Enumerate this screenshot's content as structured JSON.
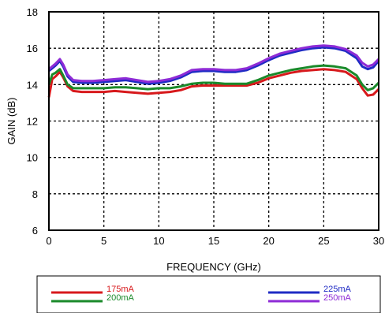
{
  "chart_data": {
    "type": "line",
    "xlabel": "FREQUENCY (GHz)",
    "ylabel": "GAIN (dB)",
    "xlim": [
      0,
      30
    ],
    "ylim": [
      6,
      18
    ],
    "xticks": [
      0,
      5,
      10,
      15,
      20,
      25,
      30
    ],
    "yticks": [
      6,
      8,
      10,
      12,
      14,
      16,
      18
    ],
    "grid": true,
    "legend_placement": "bottom",
    "series": [
      {
        "name": "175mA",
        "color": "#d7191c",
        "x": [
          0,
          0.3,
          0.6,
          1.0,
          1.3,
          1.7,
          2.2,
          3,
          4,
          5,
          6,
          7,
          8,
          9,
          10,
          11,
          12,
          13,
          14,
          15,
          16,
          17,
          18,
          19,
          20,
          21,
          22,
          23,
          24,
          25,
          26,
          27,
          28,
          28.5,
          29,
          29.5,
          30
        ],
        "y": [
          13.3,
          14.3,
          14.45,
          14.7,
          14.4,
          13.9,
          13.65,
          13.6,
          13.6,
          13.6,
          13.65,
          13.6,
          13.55,
          13.5,
          13.55,
          13.6,
          13.7,
          13.9,
          13.95,
          13.95,
          13.95,
          13.95,
          13.95,
          14.1,
          14.35,
          14.5,
          14.65,
          14.75,
          14.8,
          14.85,
          14.8,
          14.7,
          14.3,
          13.8,
          13.4,
          13.45,
          13.75
        ]
      },
      {
        "name": "200mA",
        "color": "#1a8a2a",
        "x": [
          0,
          0.3,
          0.6,
          1.0,
          1.3,
          1.7,
          2.2,
          3,
          4,
          5,
          6,
          7,
          8,
          9,
          10,
          11,
          12,
          13,
          14,
          15,
          16,
          17,
          18,
          19,
          20,
          21,
          22,
          23,
          24,
          25,
          26,
          27,
          28,
          28.5,
          29,
          29.5,
          30
        ],
        "y": [
          14.0,
          14.55,
          14.65,
          14.85,
          14.5,
          14.0,
          13.8,
          13.8,
          13.8,
          13.8,
          13.85,
          13.85,
          13.8,
          13.75,
          13.8,
          13.8,
          13.9,
          14.05,
          14.1,
          14.1,
          14.05,
          14.05,
          14.05,
          14.25,
          14.5,
          14.65,
          14.8,
          14.9,
          15.0,
          15.05,
          15.0,
          14.9,
          14.5,
          14.0,
          13.7,
          13.8,
          14.1
        ]
      },
      {
        "name": "225mA",
        "color": "#1f2bc4",
        "x": [
          0,
          0.3,
          0.6,
          1.0,
          1.3,
          1.7,
          2.2,
          3,
          4,
          5,
          6,
          7,
          8,
          9,
          10,
          11,
          12,
          13,
          14,
          15,
          16,
          17,
          18,
          19,
          20,
          21,
          22,
          23,
          24,
          25,
          26,
          27,
          28,
          28.5,
          29,
          29.5,
          30
        ],
        "y": [
          14.75,
          14.9,
          15.05,
          15.3,
          15.0,
          14.45,
          14.15,
          14.1,
          14.1,
          14.15,
          14.2,
          14.25,
          14.15,
          14.05,
          14.1,
          14.2,
          14.4,
          14.7,
          14.75,
          14.75,
          14.7,
          14.7,
          14.8,
          15.05,
          15.35,
          15.6,
          15.75,
          15.9,
          16.0,
          16.05,
          16.0,
          15.85,
          15.45,
          15.0,
          14.85,
          14.95,
          15.3
        ]
      },
      {
        "name": "250mA",
        "color": "#8e2bd6",
        "x": [
          0,
          0.3,
          0.6,
          1.0,
          1.3,
          1.7,
          2.2,
          3,
          4,
          5,
          6,
          7,
          8,
          9,
          10,
          11,
          12,
          13,
          14,
          15,
          16,
          17,
          18,
          19,
          20,
          21,
          22,
          23,
          24,
          25,
          26,
          27,
          28,
          28.5,
          29,
          29.5,
          30
        ],
        "y": [
          14.85,
          15.0,
          15.15,
          15.4,
          15.1,
          14.55,
          14.25,
          14.2,
          14.2,
          14.25,
          14.3,
          14.35,
          14.25,
          14.15,
          14.2,
          14.3,
          14.5,
          14.8,
          14.85,
          14.85,
          14.8,
          14.8,
          14.9,
          15.15,
          15.45,
          15.7,
          15.85,
          16.0,
          16.1,
          16.15,
          16.1,
          15.95,
          15.6,
          15.2,
          15.0,
          15.1,
          15.4
        ]
      }
    ]
  }
}
